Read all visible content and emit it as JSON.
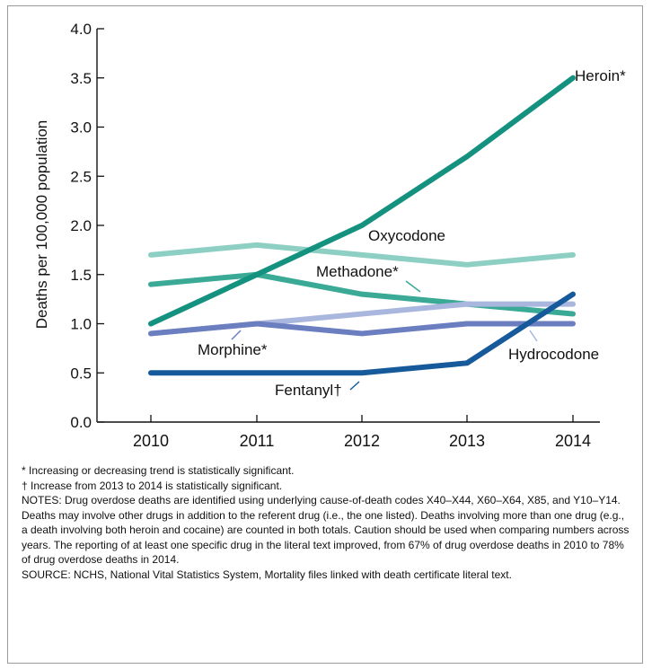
{
  "chart_data": {
    "type": "line",
    "title": "",
    "ylabel": "Deaths per 100,000 population",
    "xlabel": "",
    "x": [
      "2010",
      "2011",
      "2012",
      "2013",
      "2014"
    ],
    "ylim": [
      0.0,
      4.0
    ],
    "yticks": [
      "0.0",
      "0.5",
      "1.0",
      "1.5",
      "2.0",
      "2.5",
      "3.0",
      "3.5",
      "4.0"
    ],
    "series": [
      {
        "name": "Oxycodone",
        "values": [
          1.7,
          1.8,
          1.7,
          1.6,
          1.7
        ],
        "color": "#8ecfc4"
      },
      {
        "name": "Methadone*",
        "values": [
          1.4,
          1.5,
          1.3,
          1.2,
          1.1
        ],
        "color": "#3aa996"
      },
      {
        "name": "Hydrocodone",
        "values": [
          0.9,
          1.0,
          1.1,
          1.2,
          1.2
        ],
        "color": "#a9b6de"
      },
      {
        "name": "Morphine*",
        "values": [
          0.9,
          1.0,
          0.9,
          1.0,
          1.0
        ],
        "color": "#6b7fc0"
      },
      {
        "name": "Fentanyl†",
        "values": [
          0.5,
          0.5,
          0.5,
          0.6,
          1.3
        ],
        "color": "#175a9b"
      },
      {
        "name": "Heroin*",
        "values": [
          1.0,
          1.5,
          2.0,
          2.7,
          3.5
        ],
        "color": "#15927f"
      }
    ],
    "grid": false
  },
  "notes": [
    "* Increasing or decreasing trend is statistically significant.",
    "† Increase from 2013 to 2014 is statistically significant.",
    "NOTES: Drug overdose deaths are identified using underlying cause-of-death codes X40–X44, X60–X64, X85, and Y10–Y14. Deaths may involve other drugs in addition to the referent drug (i.e., the one listed). Deaths involving more than one drug (e.g., a death involving both heroin and cocaine) are counted in both totals. Caution should be used when comparing numbers across years. The reporting of at least one specific drug in the literal text improved, from 67% of drug overdose deaths in 2010 to 78% of drug overdose deaths in 2014.",
    "SOURCE: NCHS, National Vital Statistics System, Mortality files linked with death certificate literal text."
  ]
}
